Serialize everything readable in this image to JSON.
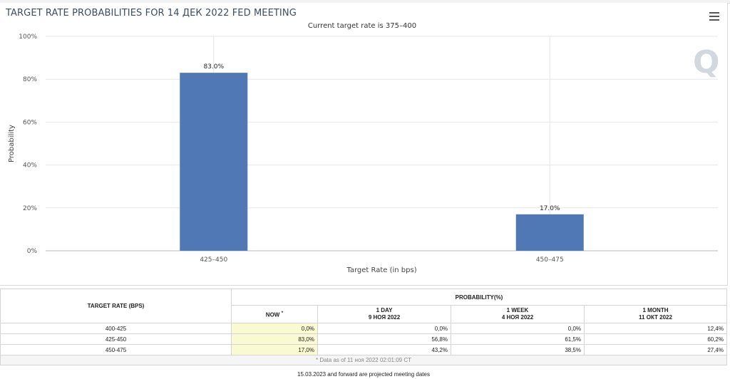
{
  "chart": {
    "title": "TARGET RATE PROBABILITIES FOR 14 ДЕК 2022 FED MEETING",
    "subtitle": "Current target rate is 375–400"
  },
  "chart_data": {
    "type": "bar",
    "title": "TARGET RATE PROBABILITIES FOR 14 ДЕК 2022 FED MEETING",
    "subtitle": "Current target rate is 375–400",
    "categories": [
      "425–450",
      "450–475"
    ],
    "values": [
      83.0,
      17.0
    ],
    "value_labels": [
      "83.0%",
      "17.0%"
    ],
    "xlabel": "Target Rate (in bps)",
    "ylabel": "Probability",
    "ylim": [
      0,
      100
    ],
    "yticks": [
      "0%",
      "20%",
      "40%",
      "60%",
      "80%",
      "100%"
    ],
    "bar_color": "#4f78b5",
    "grid": true
  },
  "table": {
    "col_rate": "TARGET RATE (BPS)",
    "col_prob": "PROBABILITY(%)",
    "col_now": "NOW",
    "now_mark": "*",
    "cols": [
      {
        "label": "1 DAY",
        "date": "9 НОЯ 2022"
      },
      {
        "label": "1 WEEK",
        "date": "4 НОЯ 2022"
      },
      {
        "label": "1 MONTH",
        "date": "11 ОКТ 2022"
      }
    ],
    "rows": [
      {
        "rate": "400-425",
        "now": "0,0%",
        "d1": "0,0%",
        "w1": "0,0%",
        "m1": "12,4%"
      },
      {
        "rate": "425-450",
        "now": "83,0%",
        "d1": "56,8%",
        "w1": "61,5%",
        "m1": "60,2%"
      },
      {
        "rate": "450-475",
        "now": "17,0%",
        "d1": "43,2%",
        "w1": "38,5%",
        "m1": "27,4%"
      }
    ],
    "note": "* Data as of 11 ноя 2022 02:01:09 CT"
  },
  "footer": "15.03.2023 and forward are projected meeting dates",
  "icons": {
    "menu": "hamburger-menu-icon",
    "watermark": "q-logo-icon"
  }
}
